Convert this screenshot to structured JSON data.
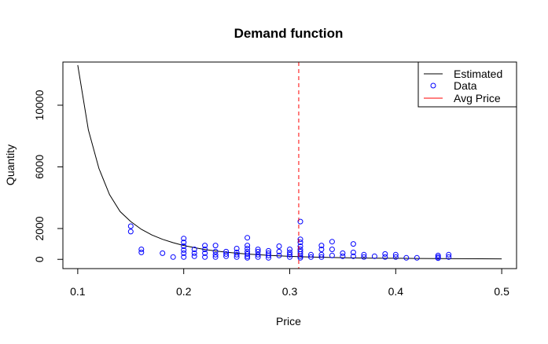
{
  "chart_data": {
    "type": "scatter",
    "title": "Demand function",
    "xlabel": "Price",
    "ylabel": "Quantity",
    "xlim": [
      0.086,
      0.514
    ],
    "ylim": [
      -600,
      12800
    ],
    "xticks": [
      0.1,
      0.2,
      0.3,
      0.4,
      0.5
    ],
    "xtick_labels": [
      "0.1",
      "0.2",
      "0.3",
      "0.4",
      "0.5"
    ],
    "yticks": [
      0,
      2000,
      6000,
      10000
    ],
    "ytick_labels": [
      "0",
      "2000",
      "6000",
      "10000"
    ],
    "legend_position": "top-right",
    "colors": {
      "estimated": "#000000",
      "data": "#0000ff",
      "avg_price": "#ff0000"
    },
    "series": [
      {
        "name": "Estimated",
        "kind": "line",
        "x": [
          0.1,
          0.11,
          0.12,
          0.13,
          0.14,
          0.15,
          0.16,
          0.17,
          0.18,
          0.19,
          0.2,
          0.21,
          0.22,
          0.23,
          0.24,
          0.25,
          0.26,
          0.27,
          0.28,
          0.29,
          0.3,
          0.32,
          0.34,
          0.36,
          0.38,
          0.4,
          0.42,
          0.44,
          0.46,
          0.48,
          0.5
        ],
        "y": [
          12600,
          8400,
          5900,
          4200,
          3100,
          2450,
          1950,
          1580,
          1300,
          1080,
          900,
          760,
          640,
          545,
          465,
          400,
          345,
          300,
          260,
          225,
          195,
          150,
          118,
          95,
          78,
          65,
          55,
          48,
          42,
          37,
          33
        ]
      },
      {
        "name": "Data",
        "kind": "points",
        "x": [
          0.15,
          0.15,
          0.16,
          0.16,
          0.18,
          0.19,
          0.2,
          0.2,
          0.2,
          0.2,
          0.2,
          0.2,
          0.21,
          0.21,
          0.21,
          0.22,
          0.22,
          0.22,
          0.22,
          0.23,
          0.23,
          0.23,
          0.23,
          0.24,
          0.24,
          0.24,
          0.25,
          0.25,
          0.25,
          0.25,
          0.26,
          0.26,
          0.26,
          0.26,
          0.26,
          0.26,
          0.26,
          0.27,
          0.27,
          0.27,
          0.27,
          0.28,
          0.28,
          0.28,
          0.28,
          0.29,
          0.29,
          0.29,
          0.3,
          0.3,
          0.3,
          0.3,
          0.31,
          0.31,
          0.31,
          0.31,
          0.31,
          0.31,
          0.31,
          0.31,
          0.31,
          0.32,
          0.32,
          0.33,
          0.33,
          0.33,
          0.33,
          0.34,
          0.34,
          0.34,
          0.35,
          0.35,
          0.36,
          0.36,
          0.36,
          0.37,
          0.37,
          0.38,
          0.39,
          0.39,
          0.4,
          0.4,
          0.41,
          0.42,
          0.44,
          0.44,
          0.44,
          0.45,
          0.45
        ],
        "y": [
          2150,
          1800,
          650,
          450,
          400,
          150,
          1350,
          1100,
          850,
          600,
          400,
          150,
          650,
          400,
          200,
          900,
          650,
          400,
          150,
          900,
          500,
          300,
          150,
          500,
          350,
          200,
          700,
          450,
          300,
          150,
          1400,
          900,
          700,
          500,
          350,
          200,
          100,
          650,
          500,
          300,
          150,
          550,
          400,
          250,
          100,
          850,
          500,
          250,
          650,
          450,
          300,
          150,
          2450,
          1300,
          1100,
          850,
          650,
          500,
          350,
          200,
          100,
          300,
          150,
          900,
          650,
          300,
          150,
          1150,
          650,
          250,
          400,
          200,
          1000,
          450,
          200,
          300,
          150,
          200,
          350,
          150,
          300,
          150,
          100,
          100,
          250,
          150,
          80,
          300,
          150
        ]
      },
      {
        "name": "Avg Price",
        "kind": "vline",
        "x": 0.3085
      }
    ]
  }
}
